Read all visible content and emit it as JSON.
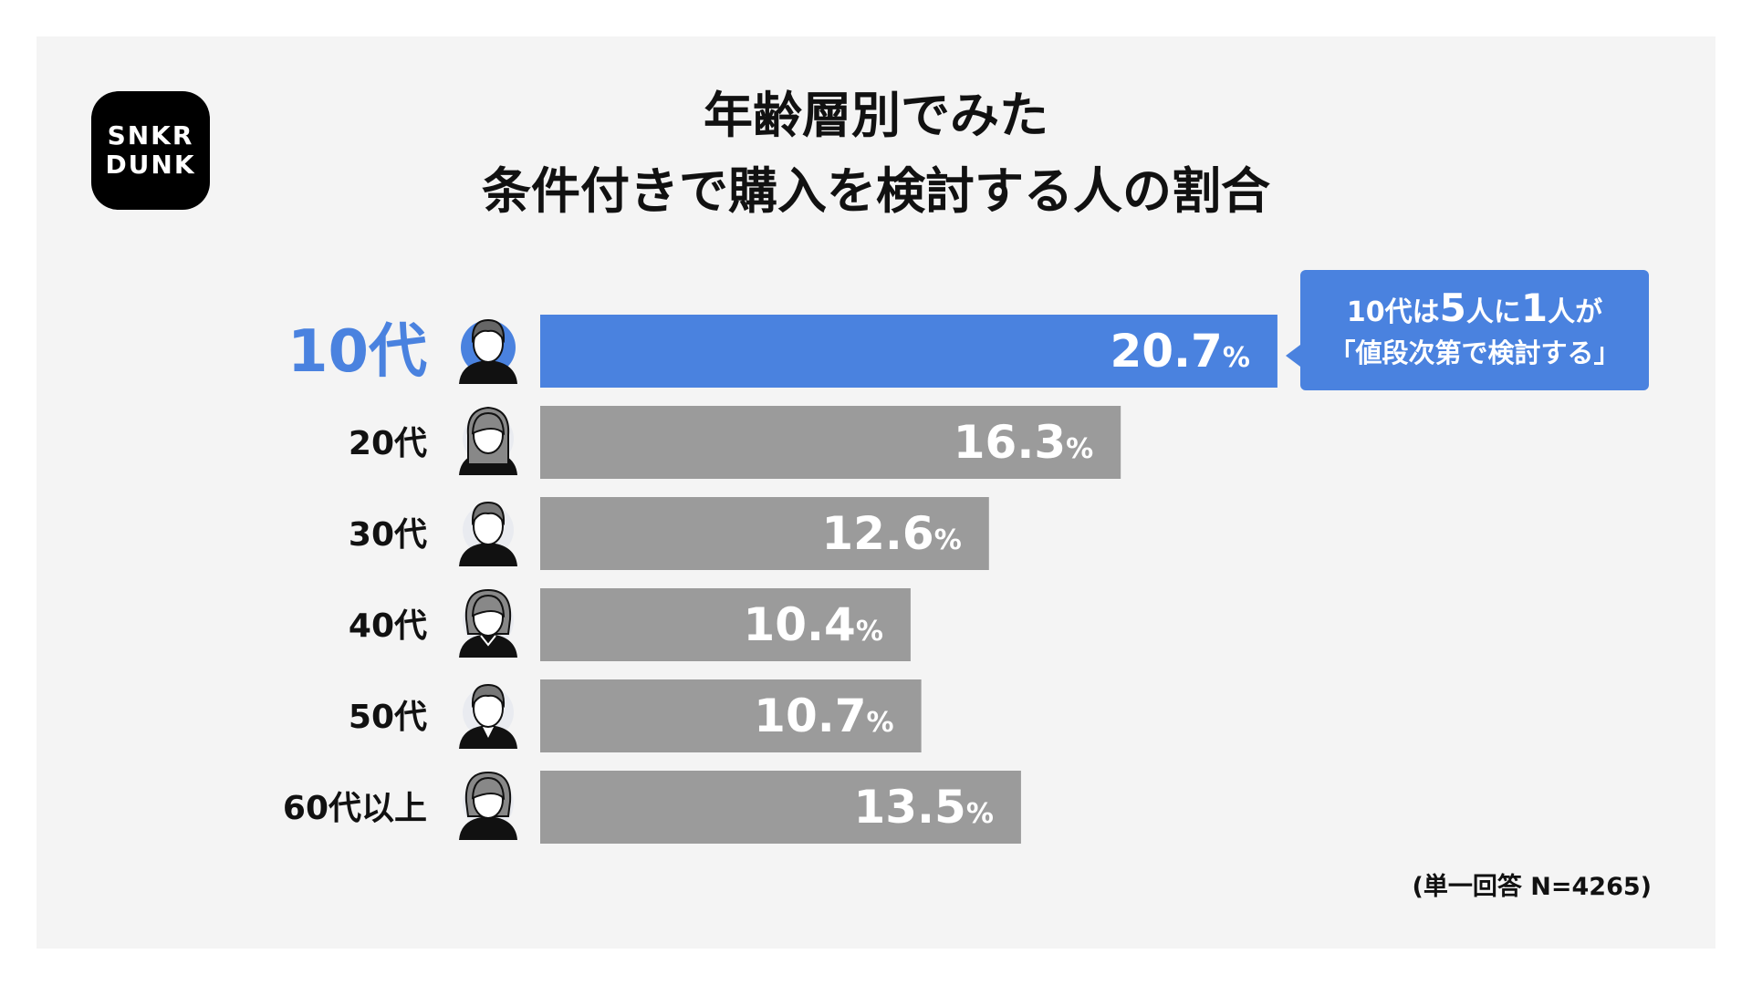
{
  "logo": {
    "line1": "SNKR",
    "line2": "DUNK"
  },
  "title_line1": "年齢層別でみた",
  "title_line2": "条件付きで購入を検討する人の割合",
  "callout": {
    "part1": "10代は",
    "num1": "5",
    "part2": "人に",
    "num2": "1",
    "part3": "人が",
    "line2": "「値段次第で検討する」"
  },
  "footnote": "(単一回答 N=4265)",
  "colors": {
    "highlight": "#4a82df",
    "bar": "#9b9b9b",
    "label": "#111111",
    "value_text": "#ffffff"
  },
  "chart_data": {
    "type": "bar",
    "orientation": "horizontal",
    "categories": [
      "10代",
      "20代",
      "30代",
      "40代",
      "50代",
      "60代以上"
    ],
    "values": [
      20.7,
      16.3,
      12.6,
      10.4,
      10.7,
      13.5
    ],
    "value_labels": [
      "20.7",
      "16.3",
      "12.6",
      "10.4",
      "10.7",
      "13.5"
    ],
    "unit": "%",
    "highlight_index": 0,
    "icons": [
      "person-short-hair-icon",
      "person-long-hair-icon",
      "person-man-icon",
      "person-woman-bob-icon",
      "person-man-suit-icon",
      "person-woman-elder-icon"
    ]
  }
}
